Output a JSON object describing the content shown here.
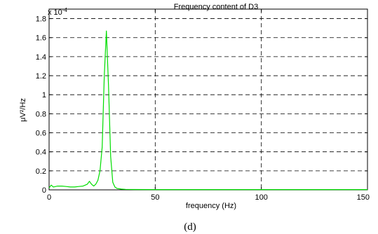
{
  "caption": "(d)",
  "chart_data": {
    "type": "line",
    "title": "Frequency content of D3",
    "xlabel": "frequency (Hz)",
    "ylabel": "μV²/Hz",
    "y_exponent_label": "x 10",
    "y_exponent_power": "-4",
    "xlim": [
      0,
      150
    ],
    "ylim": [
      0,
      1.9
    ],
    "x_ticks": [
      0,
      50,
      100,
      150
    ],
    "x_tick_labels": [
      "0",
      "50",
      "100",
      "150"
    ],
    "y_ticks": [
      0,
      0.2,
      0.4,
      0.6,
      0.8,
      1.0,
      1.2,
      1.4,
      1.6,
      1.8
    ],
    "y_tick_labels": [
      "0",
      "0.2",
      "0.4",
      "0.6",
      "0.8",
      "1",
      "1.2",
      "1.4",
      "1.6",
      "1.8"
    ],
    "grid": true,
    "line_color": "#00dd00",
    "series": [
      {
        "x": [
          0,
          1,
          2,
          4,
          6,
          8,
          10,
          12,
          14,
          16,
          18,
          19,
          20,
          21,
          22,
          23,
          24,
          25,
          26,
          27,
          28,
          29,
          30,
          31,
          32,
          34,
          36,
          40,
          50,
          60,
          80,
          100,
          120,
          150
        ],
        "values": [
          0.02,
          0.05,
          0.03,
          0.04,
          0.04,
          0.035,
          0.03,
          0.03,
          0.035,
          0.04,
          0.06,
          0.09,
          0.06,
          0.04,
          0.06,
          0.1,
          0.2,
          0.45,
          1.2,
          1.67,
          1.1,
          0.35,
          0.08,
          0.03,
          0.015,
          0.008,
          0.005,
          0.004,
          0.003,
          0.003,
          0.003,
          0.003,
          0.003,
          0.003
        ]
      }
    ]
  }
}
